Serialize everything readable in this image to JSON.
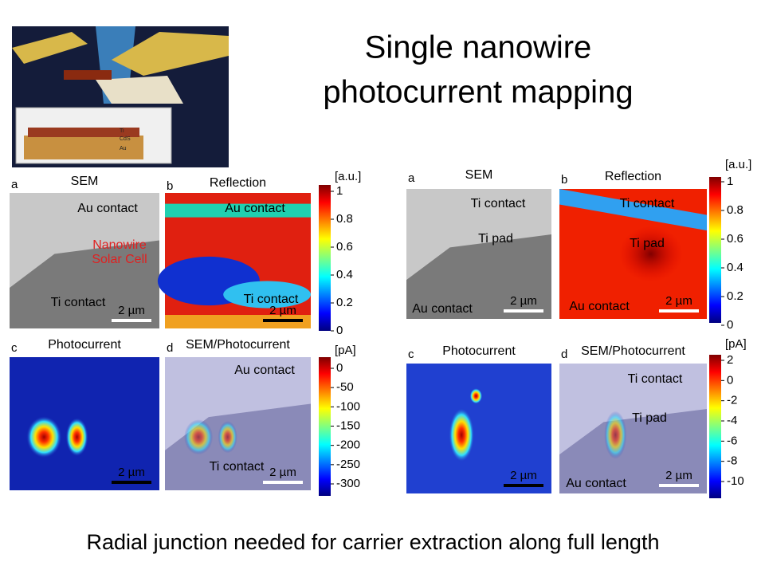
{
  "title": {
    "line1": "Single nanowire",
    "line2": "photocurrent mapping"
  },
  "caption": "Radial junction needed for carrier extraction along full length",
  "inset": {
    "labels": [
      "Ti",
      "CdS",
      "Au"
    ]
  },
  "left": {
    "panels": [
      {
        "letter": "a",
        "title": "SEM",
        "labels": [
          "Au contact",
          "Nanowire",
          "Solar Cell",
          "Ti contact"
        ],
        "scale": "2 µm"
      },
      {
        "letter": "b",
        "title": "Reflection",
        "labels": [
          "Au contact",
          "Ti contact"
        ],
        "scale": "2 µm"
      },
      {
        "letter": "c",
        "title": "Photocurrent",
        "scale": "2 µm"
      },
      {
        "letter": "d",
        "title": "SEM/Photocurrent",
        "labels": [
          "Au contact",
          "Ti contact"
        ],
        "scale": "2 µm"
      }
    ],
    "colorbars": [
      {
        "unit": "[a.u.]",
        "ticks": [
          1,
          0.8,
          0.6,
          0.4,
          0.2,
          0
        ]
      },
      {
        "unit": "[pA]",
        "ticks": [
          0,
          -50,
          -100,
          -150,
          -200,
          -250,
          -300
        ]
      }
    ]
  },
  "right": {
    "panels": [
      {
        "letter": "a",
        "title": "SEM",
        "labels": [
          "Ti contact",
          "Ti pad",
          "Au contact"
        ],
        "scale": "2 µm"
      },
      {
        "letter": "b",
        "title": "Reflection",
        "labels": [
          "Ti contact",
          "Ti pad",
          "Au contact"
        ],
        "scale": "2 µm"
      },
      {
        "letter": "c",
        "title": "Photocurrent",
        "scale": "2 µm"
      },
      {
        "letter": "d",
        "title": "SEM/Photocurrent",
        "labels": [
          "Ti contact",
          "Ti pad",
          "Au contact"
        ],
        "scale": "2 µm"
      }
    ],
    "colorbars": [
      {
        "unit": "[a.u.]",
        "ticks": [
          1,
          0.8,
          0.6,
          0.4,
          0.2,
          0
        ]
      },
      {
        "unit": "[pA]",
        "ticks": [
          2,
          0,
          -2,
          -4,
          -6,
          -8,
          -10
        ]
      }
    ]
  }
}
